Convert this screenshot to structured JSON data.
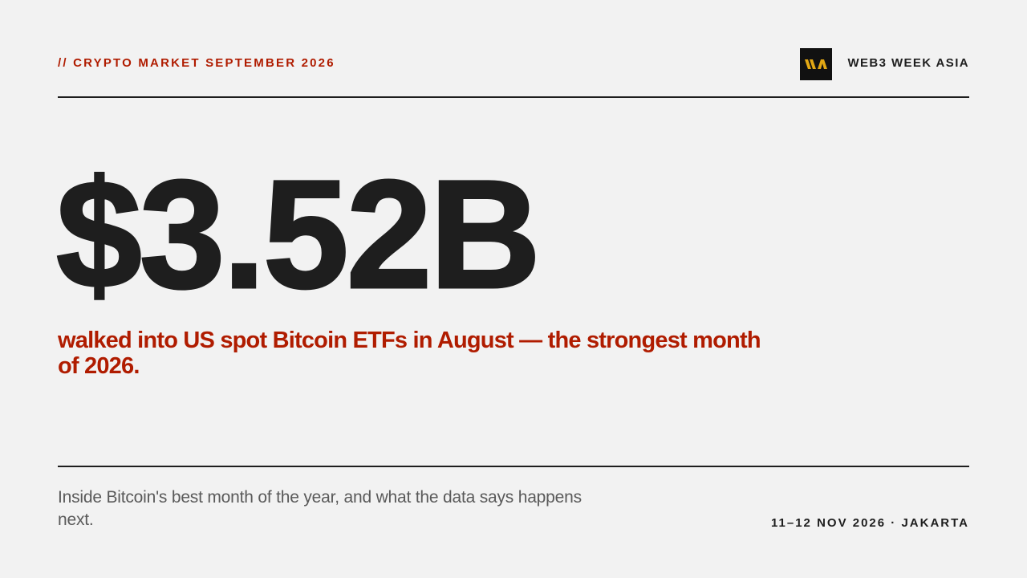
{
  "header": {
    "kicker": "// CRYPTO MARKET SEPTEMBER 2026",
    "brand": "WEB3 WEEK ASIA"
  },
  "hero": {
    "figure": "$3.52B",
    "caption": "walked into US spot Bitcoin ETFs in August — the strongest month of 2026."
  },
  "footer": {
    "summary": "Inside Bitcoin's best month of the year, and what the data says happens next.",
    "event": "11–12 NOV 2026 · JAKARTA"
  }
}
